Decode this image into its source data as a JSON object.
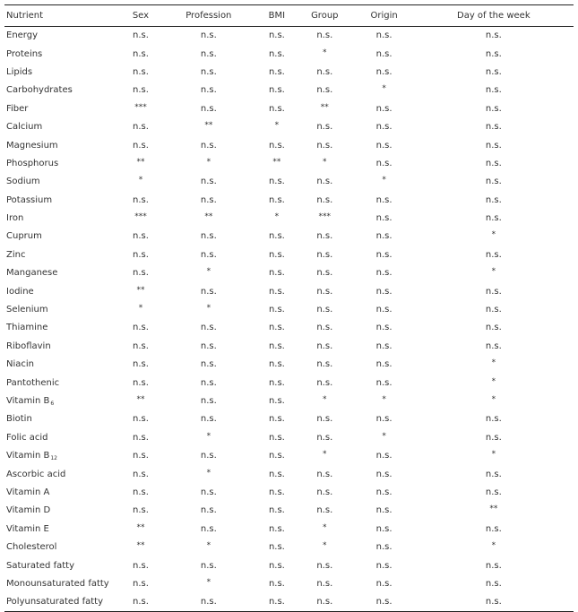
{
  "table": {
    "headers": [
      "Nutrient",
      "Sex",
      "Profession",
      "BMI",
      "Group",
      "Origin",
      "Day of the week"
    ],
    "rows": [
      {
        "name": "Energy",
        "sub": "",
        "cells": [
          "n.s.",
          "n.s.",
          "n.s.",
          "n.s.",
          "n.s.",
          "n.s."
        ]
      },
      {
        "name": "Proteins",
        "sub": "",
        "cells": [
          "n.s.",
          "n.s.",
          "n.s.",
          "*",
          "n.s.",
          "n.s."
        ]
      },
      {
        "name": "Lipids",
        "sub": "",
        "cells": [
          "n.s.",
          "n.s.",
          "n.s.",
          "n.s.",
          "n.s.",
          "n.s."
        ]
      },
      {
        "name": "Carbohydrates",
        "sub": "",
        "cells": [
          "n.s.",
          "n.s.",
          "n.s.",
          "n.s.",
          "*",
          "n.s."
        ]
      },
      {
        "name": "Fiber",
        "sub": "",
        "cells": [
          "***",
          "n.s.",
          "n.s.",
          "**",
          "n.s.",
          "n.s."
        ]
      },
      {
        "name": "Calcium",
        "sub": "",
        "cells": [
          "n.s.",
          "**",
          "*",
          "n.s.",
          "n.s.",
          "n.s."
        ]
      },
      {
        "name": "Magnesium",
        "sub": "",
        "cells": [
          "n.s.",
          "n.s.",
          "n.s.",
          "n.s.",
          "n.s.",
          "n.s."
        ]
      },
      {
        "name": "Phosphorus",
        "sub": "",
        "cells": [
          "**",
          "*",
          "**",
          "*",
          "n.s.",
          "n.s."
        ]
      },
      {
        "name": "Sodium",
        "sub": "",
        "cells": [
          "*",
          "n.s.",
          "n.s.",
          "n.s.",
          "*",
          "n.s."
        ]
      },
      {
        "name": "Potassium",
        "sub": "",
        "cells": [
          "n.s.",
          "n.s.",
          "n.s.",
          "n.s.",
          "n.s.",
          "n.s."
        ]
      },
      {
        "name": "Iron",
        "sub": "",
        "cells": [
          "***",
          "**",
          "*",
          "***",
          "n.s.",
          "n.s."
        ]
      },
      {
        "name": "Cuprum",
        "sub": "",
        "cells": [
          "n.s.",
          "n.s.",
          "n.s.",
          "n.s.",
          "n.s.",
          "*"
        ]
      },
      {
        "name": "Zinc",
        "sub": "",
        "cells": [
          "n.s.",
          "n.s.",
          "n.s.",
          "n.s.",
          "n.s.",
          "n.s."
        ]
      },
      {
        "name": "Manganese",
        "sub": "",
        "cells": [
          "n.s.",
          "*",
          "n.s.",
          "n.s.",
          "n.s.",
          "*"
        ]
      },
      {
        "name": "Iodine",
        "sub": "",
        "cells": [
          "**",
          "n.s.",
          "n.s.",
          "n.s.",
          "n.s.",
          "n.s."
        ]
      },
      {
        "name": "Selenium",
        "sub": "",
        "cells": [
          "*",
          "*",
          "n.s.",
          "n.s.",
          "n.s.",
          "n.s."
        ]
      },
      {
        "name": "Thiamine",
        "sub": "",
        "cells": [
          "n.s.",
          "n.s.",
          "n.s.",
          "n.s.",
          "n.s.",
          "n.s."
        ]
      },
      {
        "name": "Riboflavin",
        "sub": "",
        "cells": [
          "n.s.",
          "n.s.",
          "n.s.",
          "n.s.",
          "n.s.",
          "n.s."
        ]
      },
      {
        "name": "Niacin",
        "sub": "",
        "cells": [
          "n.s.",
          "n.s.",
          "n.s.",
          "n.s.",
          "n.s.",
          "*"
        ]
      },
      {
        "name": "Pantothenic",
        "sub": "",
        "cells": [
          "n.s.",
          "n.s.",
          "n.s.",
          "n.s.",
          "n.s.",
          "*"
        ]
      },
      {
        "name": "Vitamin B",
        "sub": "6",
        "cells": [
          "**",
          "n.s.",
          "n.s.",
          "*",
          "*",
          "*"
        ]
      },
      {
        "name": "Biotin",
        "sub": "",
        "cells": [
          "n.s.",
          "n.s.",
          "n.s.",
          "n.s.",
          "n.s.",
          "n.s."
        ]
      },
      {
        "name": "Folic acid",
        "sub": "",
        "cells": [
          "n.s.",
          "*",
          "n.s.",
          "n.s.",
          "*",
          "n.s."
        ]
      },
      {
        "name": "Vitamin B",
        "sub": "12",
        "cells": [
          "n.s.",
          "n.s.",
          "n.s.",
          "*",
          "n.s.",
          "*"
        ]
      },
      {
        "name": "Ascorbic acid",
        "sub": "",
        "cells": [
          "n.s.",
          "*",
          "n.s.",
          "n.s.",
          "n.s.",
          "n.s."
        ]
      },
      {
        "name": "Vitamin A",
        "sub": "",
        "cells": [
          "n.s.",
          "n.s.",
          "n.s.",
          "n.s.",
          "n.s.",
          "n.s."
        ]
      },
      {
        "name": "Vitamin D",
        "sub": "",
        "cells": [
          "n.s.",
          "n.s.",
          "n.s.",
          "n.s.",
          "n.s.",
          "**"
        ]
      },
      {
        "name": "Vitamin E",
        "sub": "",
        "cells": [
          "**",
          "n.s.",
          "n.s.",
          "*",
          "n.s.",
          "n.s."
        ]
      },
      {
        "name": "Cholesterol",
        "sub": "",
        "cells": [
          "**",
          "*",
          "n.s.",
          "*",
          "n.s.",
          "*"
        ]
      },
      {
        "name": "Saturated fatty",
        "sub": "",
        "cells": [
          "n.s.",
          "n.s.",
          "n.s.",
          "n.s.",
          "n.s.",
          "n.s."
        ]
      },
      {
        "name": "Monounsaturated fatty",
        "sub": "",
        "cells": [
          "n.s.",
          "*",
          "n.s.",
          "n.s.",
          "n.s.",
          "n.s."
        ]
      },
      {
        "name": "Polyunsaturated fatty",
        "sub": "",
        "cells": [
          "n.s.",
          "n.s.",
          "n.s.",
          "n.s.",
          "n.s.",
          "n.s."
        ]
      }
    ]
  }
}
